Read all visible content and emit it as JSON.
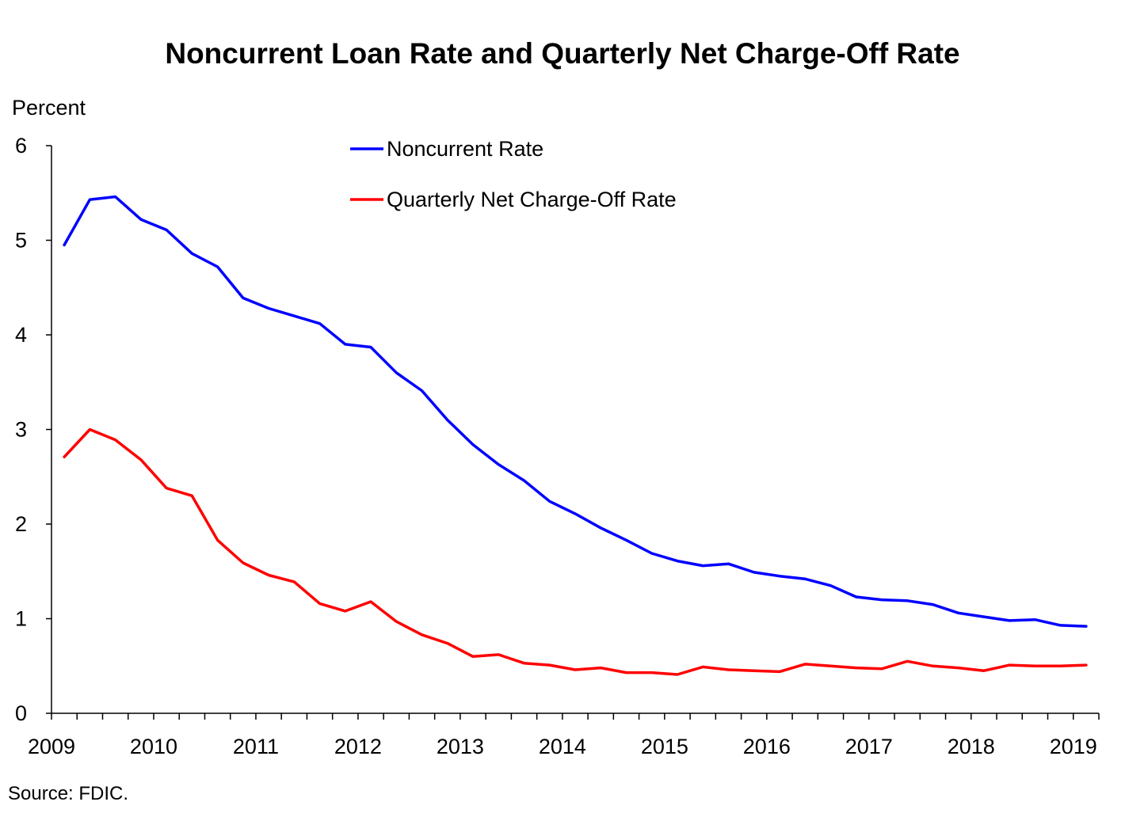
{
  "chart_data": {
    "type": "line",
    "title": "Noncurrent Loan Rate and Quarterly Net Charge-Off Rate",
    "ylabel": "Percent",
    "xlabel": "",
    "ylim": [
      0,
      6
    ],
    "yticks": [
      "0",
      "1",
      "2",
      "3",
      "4",
      "5",
      "6"
    ],
    "xlim": [
      2009,
      2019.25
    ],
    "xticks": [
      "2009",
      "2010",
      "2011",
      "2012",
      "2013",
      "2014",
      "2015",
      "2016",
      "2017",
      "2018",
      "2019"
    ],
    "grid": false,
    "legend_position": "top-center",
    "x": [
      "2009 Q1",
      "2009 Q2",
      "2009 Q3",
      "2009 Q4",
      "2010 Q1",
      "2010 Q2",
      "2010 Q3",
      "2010 Q4",
      "2011 Q1",
      "2011 Q2",
      "2011 Q3",
      "2011 Q4",
      "2012 Q1",
      "2012 Q2",
      "2012 Q3",
      "2012 Q4",
      "2013 Q1",
      "2013 Q2",
      "2013 Q3",
      "2013 Q4",
      "2014 Q1",
      "2014 Q2",
      "2014 Q3",
      "2014 Q4",
      "2015 Q1",
      "2015 Q2",
      "2015 Q3",
      "2015 Q4",
      "2016 Q1",
      "2016 Q2",
      "2016 Q3",
      "2016 Q4",
      "2017 Q1",
      "2017 Q2",
      "2017 Q3",
      "2017 Q4",
      "2018 Q1",
      "2018 Q2",
      "2018 Q3",
      "2018 Q4",
      "2019 Q1"
    ],
    "series": [
      {
        "name": "Noncurrent Rate",
        "color": "#0000ff",
        "values": [
          4.95,
          5.43,
          5.46,
          5.22,
          5.11,
          4.86,
          4.72,
          4.39,
          4.28,
          4.2,
          4.12,
          3.9,
          3.87,
          3.6,
          3.41,
          3.1,
          2.84,
          2.63,
          2.46,
          2.24,
          2.11,
          1.96,
          1.83,
          1.69,
          1.61,
          1.56,
          1.58,
          1.49,
          1.45,
          1.42,
          1.35,
          1.23,
          1.2,
          1.19,
          1.15,
          1.06,
          1.02,
          0.98,
          0.99,
          0.93,
          0.92
        ]
      },
      {
        "name": "Quarterly Net Charge-Off Rate",
        "color": "#ff0000",
        "values": [
          2.71,
          3.0,
          2.89,
          2.68,
          2.38,
          2.3,
          1.83,
          1.59,
          1.46,
          1.39,
          1.16,
          1.08,
          1.18,
          0.97,
          0.83,
          0.74,
          0.6,
          0.62,
          0.53,
          0.51,
          0.46,
          0.48,
          0.43,
          0.43,
          0.41,
          0.49,
          0.46,
          0.45,
          0.44,
          0.52,
          0.5,
          0.48,
          0.47,
          0.55,
          0.5,
          0.48,
          0.45,
          0.51,
          0.5,
          0.5,
          0.51
        ]
      }
    ]
  },
  "source": "Source:  FDIC."
}
